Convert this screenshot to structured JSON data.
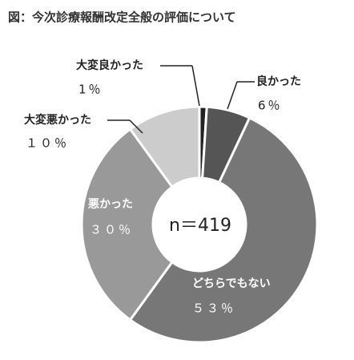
{
  "chart_data": {
    "type": "donut",
    "title": "図：今次診療報酬改定全般の評価について",
    "center_label": "n＝419",
    "categories": [
      "大変良かった",
      "良かった",
      "どちらでもない",
      "悪かった",
      "大変悪かった"
    ],
    "values": [
      1,
      6,
      53,
      30,
      10
    ],
    "value_labels": [
      "1％",
      "6％",
      "５３％",
      "３０％",
      "１０％"
    ],
    "colors": [
      "#222222",
      "#555555",
      "#777777",
      "#999999",
      "#cccccc"
    ]
  }
}
